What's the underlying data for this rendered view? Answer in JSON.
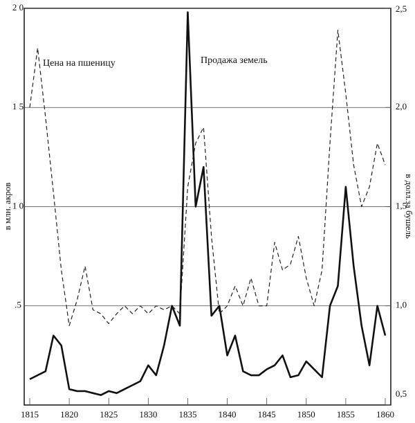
{
  "chart_data": {
    "type": "line",
    "x": [
      1815,
      1816,
      1817,
      1818,
      1819,
      1820,
      1821,
      1822,
      1823,
      1824,
      1825,
      1826,
      1827,
      1828,
      1829,
      1830,
      1831,
      1832,
      1833,
      1834,
      1835,
      1836,
      1837,
      1838,
      1839,
      1840,
      1841,
      1842,
      1843,
      1844,
      1845,
      1846,
      1847,
      1848,
      1849,
      1850,
      1851,
      1852,
      1853,
      1854,
      1855,
      1856,
      1857,
      1858,
      1859,
      1860
    ],
    "xlim": [
      1815,
      1860
    ],
    "xticks": [
      1815,
      1820,
      1825,
      1830,
      1835,
      1840,
      1845,
      1850,
      1855,
      1860
    ],
    "ylabel": "в млн. акров",
    "ylim": [
      0,
      2.0
    ],
    "yticks": [
      {
        "value": 0.5,
        "label": ".5"
      },
      {
        "value": 1.0,
        "label": "1 0"
      },
      {
        "value": 1.5,
        "label": "1 5"
      },
      {
        "value": 2.0,
        "label": "2 0"
      }
    ],
    "y2label": "в долл.за бушель",
    "y2lim": [
      0.5,
      2.5
    ],
    "y2ticks": [
      {
        "value": 0.5,
        "label": "0,5"
      },
      {
        "value": 1.0,
        "label": "1,0"
      },
      {
        "value": 1.5,
        "label": "1,5"
      },
      {
        "value": 2.0,
        "label": "2,0"
      },
      {
        "value": 2.5,
        "label": "2,5"
      }
    ],
    "grid": true,
    "series": [
      {
        "name": "Продажа земель",
        "color": "#111111",
        "line_style": "solid",
        "axis": "y",
        "values": [
          0.13,
          0.15,
          0.17,
          0.35,
          0.3,
          0.08,
          0.07,
          0.07,
          0.06,
          0.05,
          0.07,
          0.06,
          0.08,
          0.1,
          0.12,
          0.2,
          0.15,
          0.3,
          0.5,
          0.4,
          1.98,
          1.0,
          1.2,
          0.45,
          0.5,
          0.25,
          0.35,
          0.17,
          0.15,
          0.15,
          0.18,
          0.2,
          0.25,
          0.14,
          0.15,
          0.22,
          0.18,
          0.14,
          0.5,
          0.6,
          1.1,
          0.7,
          0.4,
          0.2,
          0.5,
          0.35
        ]
      },
      {
        "name": "Цена на пшеницу",
        "color": "#222222",
        "line_style": "dashed",
        "axis": "y2",
        "values": [
          2.0,
          2.3,
          1.95,
          1.57,
          1.18,
          0.9,
          1.03,
          1.2,
          0.98,
          0.96,
          0.91,
          0.96,
          1.0,
          0.96,
          1.0,
          0.96,
          1.0,
          0.98,
          1.0,
          0.96,
          1.6,
          1.82,
          1.9,
          1.35,
          0.96,
          1.0,
          1.1,
          1.0,
          1.14,
          1.0,
          1.0,
          1.32,
          1.18,
          1.21,
          1.35,
          1.14,
          1.0,
          1.18,
          1.82,
          2.39,
          2.07,
          1.71,
          1.5,
          1.6,
          1.82,
          1.71
        ]
      }
    ]
  }
}
